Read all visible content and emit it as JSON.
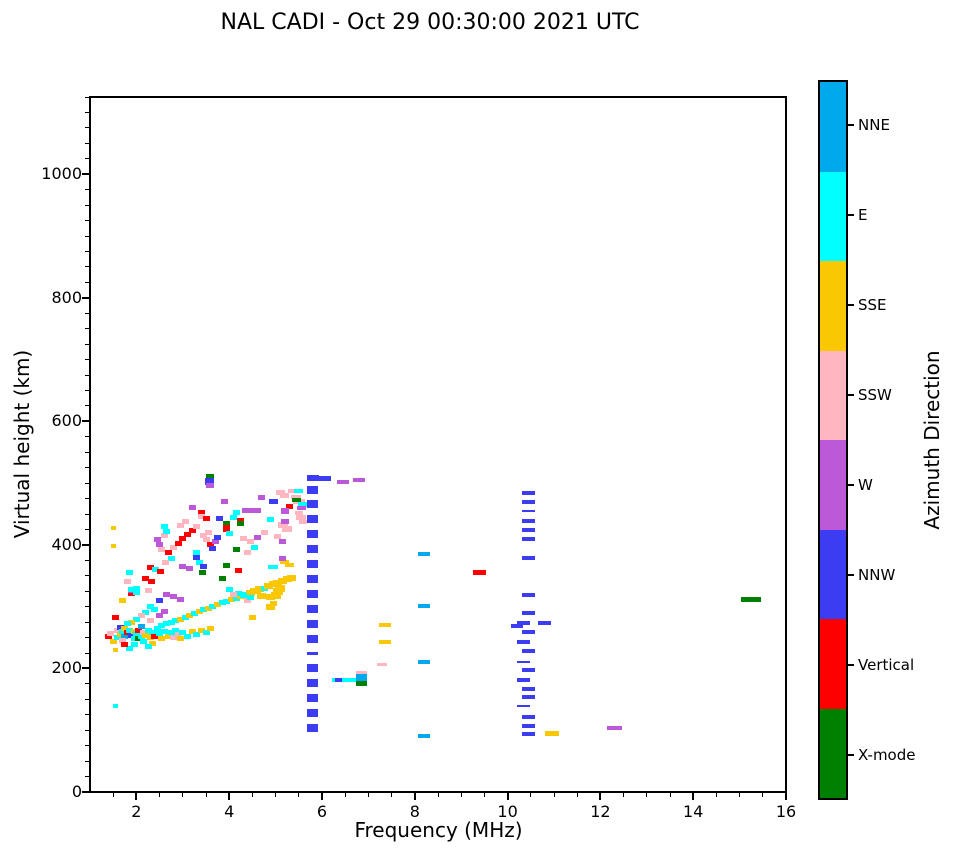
{
  "title": "NAL CADI - Oct 29 00:30:00 2021 UTC",
  "chart_data": {
    "type": "scatter",
    "title": "NAL CADI - Oct 29 00:30:00 2021 UTC",
    "xlabel": "Frequency (MHz)",
    "ylabel": "Virtual height (km)",
    "xlim": [
      1,
      16
    ],
    "ylim": [
      0,
      1125
    ],
    "xticks": [
      2,
      4,
      6,
      8,
      10,
      12,
      14,
      16
    ],
    "yticks": [
      0,
      200,
      400,
      600,
      800,
      1000
    ],
    "x_minor_step": 0.5,
    "y_minor_step": 25,
    "grid": true,
    "grid_color": "#c9c9c9",
    "palette": {
      "NNE": "#00A8EC",
      "E": "#00FFFF",
      "SSE": "#F9C802",
      "SSW": "#FFB6C1",
      "W": "#BC59D8",
      "NNW": "#3C3CF2",
      "V": "#FF0000",
      "X": "#008000"
    },
    "colorbar": {
      "label": "Azimuth Direction",
      "categories_top_to_bottom": [
        {
          "label": "NNE",
          "key": "NNE",
          "color": "#00A8EC"
        },
        {
          "label": "E",
          "key": "E",
          "color": "#00FFFF"
        },
        {
          "label": "SSE",
          "key": "SSE",
          "color": "#F9C802"
        },
        {
          "label": "SSW",
          "key": "SSW",
          "color": "#FFB6C1"
        },
        {
          "label": "W",
          "key": "W",
          "color": "#BC59D8"
        },
        {
          "label": "NNW",
          "key": "NNW",
          "color": "#3C3CF2"
        },
        {
          "label": "Vertical",
          "key": "V",
          "color": "#FF0000"
        },
        {
          "label": "X-mode",
          "key": "X",
          "color": "#008000"
        }
      ]
    },
    "point_format": "[freq_MHz, height_km, direction, width_px?, height_px?]",
    "points": [
      [
        1.5,
        428,
        "SSE",
        5,
        4
      ],
      [
        1.5,
        398,
        "SSE",
        5,
        4
      ],
      [
        1.55,
        139,
        "E",
        5,
        4
      ],
      [
        1.55,
        230,
        "SSE",
        5,
        4
      ],
      [
        3.58,
        510,
        "X",
        8,
        5
      ],
      [
        3.58,
        503,
        "NNW",
        9,
        7
      ],
      [
        3.58,
        496,
        "W",
        8,
        5
      ],
      [
        6.05,
        507,
        "NNW",
        13,
        5
      ],
      [
        6.45,
        502,
        "W",
        12,
        4
      ],
      [
        6.8,
        505,
        "W",
        12,
        4
      ],
      [
        5.45,
        477,
        "SSW",
        10,
        4
      ],
      [
        5.5,
        470,
        "SSW",
        12,
        5
      ],
      [
        5.35,
        487,
        "SSW",
        8,
        4
      ],
      [
        5.5,
        487,
        "E",
        9,
        4
      ],
      [
        5.6,
        466,
        "E",
        11,
        5
      ],
      [
        5.45,
        472,
        "X",
        9,
        4
      ],
      [
        5.55,
        460,
        "W",
        9,
        4
      ],
      [
        5.5,
        452,
        "SSW",
        8,
        4
      ],
      [
        5.55,
        444,
        "SSW",
        10,
        5
      ],
      [
        5.6,
        437,
        "SSW",
        8,
        4
      ],
      [
        5.3,
        462,
        "V",
        7,
        5
      ],
      [
        2.3,
        364,
        "V"
      ],
      [
        2.42,
        360,
        "E"
      ],
      [
        2.52,
        357,
        "V"
      ],
      [
        3.0,
        365,
        "W"
      ],
      [
        3.15,
        362,
        "W"
      ],
      [
        3.42,
        356,
        "X"
      ],
      [
        2.2,
        345,
        "V"
      ],
      [
        2.33,
        341,
        "V"
      ],
      [
        3.85,
        346,
        "X"
      ],
      [
        3.95,
        366,
        "X"
      ],
      [
        2.45,
        408,
        "W"
      ],
      [
        2.5,
        400,
        "W"
      ],
      [
        2.6,
        415,
        "SSW"
      ],
      [
        2.65,
        422,
        "E"
      ],
      [
        2.6,
        430,
        "E"
      ],
      [
        2.55,
        392,
        "SSW"
      ],
      [
        2.7,
        388,
        "V"
      ],
      [
        2.8,
        395,
        "SSW"
      ],
      [
        2.9,
        402,
        "V"
      ],
      [
        3.0,
        410,
        "V"
      ],
      [
        3.1,
        417,
        "V"
      ],
      [
        3.2,
        424,
        "V"
      ],
      [
        3.3,
        430,
        "SSW"
      ],
      [
        2.95,
        432,
        "SSW"
      ],
      [
        3.05,
        438,
        "SSW"
      ],
      [
        2.75,
        378,
        "E"
      ],
      [
        2.62,
        372,
        "SSW"
      ],
      [
        3.4,
        453,
        "V"
      ],
      [
        3.4,
        446,
        "SSW"
      ],
      [
        3.2,
        461,
        "W"
      ],
      [
        3.5,
        443,
        "V"
      ],
      [
        3.8,
        443,
        "NNW"
      ],
      [
        3.9,
        470,
        "W"
      ],
      [
        3.95,
        434,
        "X"
      ],
      [
        3.95,
        427,
        "V",
        7,
        7
      ],
      [
        4.1,
        445,
        "E"
      ],
      [
        4.15,
        452,
        "E"
      ],
      [
        4.25,
        440,
        "V"
      ],
      [
        4.25,
        434,
        "X"
      ],
      [
        4.5,
        456,
        "W"
      ],
      [
        4.35,
        455,
        "W"
      ],
      [
        4.6,
        455,
        "W"
      ],
      [
        4.7,
        477,
        "W"
      ],
      [
        4.9,
        441,
        "E"
      ],
      [
        4.95,
        470,
        "NNW",
        9,
        5
      ],
      [
        5.1,
        484,
        "SSW",
        9,
        5
      ],
      [
        5.2,
        480,
        "SSW",
        9,
        5
      ],
      [
        5.15,
        432,
        "SSW",
        10,
        6
      ],
      [
        5.25,
        425,
        "SSW",
        10,
        6
      ],
      [
        5.2,
        455,
        "W",
        8,
        6
      ],
      [
        5.2,
        438,
        "W",
        8,
        5
      ],
      [
        5.05,
        413,
        "SSW"
      ],
      [
        5.15,
        405,
        "W"
      ],
      [
        3.6,
        400,
        "V"
      ],
      [
        3.65,
        394,
        "NNW"
      ],
      [
        3.7,
        405,
        "W"
      ],
      [
        3.75,
        412,
        "NNW"
      ],
      [
        3.55,
        420,
        "SSW"
      ],
      [
        3.45,
        415,
        "SSW"
      ],
      [
        3.5,
        408,
        "SSW"
      ],
      [
        4.0,
        418,
        "E"
      ],
      [
        4.15,
        393,
        "X"
      ],
      [
        4.4,
        388,
        "SSW"
      ],
      [
        4.55,
        395,
        "E"
      ],
      [
        4.3,
        410,
        "SSW"
      ],
      [
        4.45,
        405,
        "SSW"
      ],
      [
        4.6,
        412,
        "W"
      ],
      [
        4.75,
        420,
        "SSW"
      ],
      [
        3.3,
        380,
        "NNW"
      ],
      [
        3.35,
        372,
        "E"
      ],
      [
        3.45,
        365,
        "NNW"
      ],
      [
        3.3,
        388,
        "E"
      ],
      [
        2.0,
        330,
        "E"
      ],
      [
        1.9,
        322,
        "V"
      ],
      [
        1.9,
        326,
        "W"
      ],
      [
        1.85,
        356,
        "E"
      ],
      [
        1.8,
        340,
        "SSW"
      ],
      [
        1.7,
        310,
        "SSE"
      ],
      [
        2.65,
        320,
        "W"
      ],
      [
        2.8,
        316,
        "W"
      ],
      [
        2.95,
        312,
        "W"
      ],
      [
        2.25,
        326,
        "SSW"
      ],
      [
        1.9,
        328,
        "E"
      ],
      [
        2.0,
        323,
        "E"
      ],
      [
        2.5,
        310,
        "NNW"
      ],
      [
        4.2,
        358,
        "V"
      ],
      [
        4.95,
        364,
        "E",
        10,
        4
      ],
      [
        5.2,
        373,
        "SSE",
        9,
        4
      ],
      [
        5.3,
        368,
        "SSE",
        9,
        4
      ],
      [
        5.15,
        378,
        "W"
      ],
      [
        2.55,
        270,
        "E"
      ],
      [
        2.65,
        272,
        "E"
      ],
      [
        2.75,
        275,
        "E"
      ],
      [
        2.85,
        278,
        "E"
      ],
      [
        2.95,
        280,
        "SSE"
      ],
      [
        3.05,
        283,
        "E"
      ],
      [
        3.15,
        286,
        "SSE"
      ],
      [
        3.25,
        289,
        "E"
      ],
      [
        3.35,
        292,
        "SSE"
      ],
      [
        3.45,
        295,
        "E"
      ],
      [
        3.55,
        297,
        "SSE"
      ],
      [
        3.65,
        300,
        "E"
      ],
      [
        3.75,
        303,
        "SSE"
      ],
      [
        3.85,
        306,
        "E"
      ],
      [
        3.95,
        308,
        "E"
      ],
      [
        4.05,
        311,
        "SSE"
      ],
      [
        4.15,
        314,
        "E"
      ],
      [
        4.25,
        317,
        "SSE"
      ],
      [
        4.35,
        320,
        "E"
      ],
      [
        4.45,
        322,
        "SSE",
        9,
        6
      ],
      [
        4.55,
        325,
        "SSE",
        9,
        6
      ],
      [
        4.65,
        328,
        "SSE",
        9,
        6
      ],
      [
        4.75,
        330,
        "E"
      ],
      [
        4.85,
        333,
        "SSE",
        9,
        6
      ],
      [
        4.95,
        336,
        "SSE",
        9,
        6
      ],
      [
        5.05,
        339,
        "SSE",
        9,
        6
      ],
      [
        5.15,
        342,
        "SSE",
        9,
        6
      ],
      [
        5.25,
        345,
        "SSE",
        9,
        6
      ],
      [
        5.35,
        347,
        "SSE",
        9,
        6
      ],
      [
        4.5,
        282,
        "SSE"
      ],
      [
        4.9,
        300,
        "SSE",
        9,
        6
      ],
      [
        4.95,
        305,
        "SSE"
      ],
      [
        5.0,
        318,
        "SSE",
        10,
        7
      ],
      [
        5.05,
        325,
        "SSE",
        10,
        7
      ],
      [
        4.6,
        325,
        "SSE"
      ],
      [
        4.7,
        318,
        "SSE",
        9,
        6
      ],
      [
        4.9,
        315,
        "SSE",
        9,
        6
      ],
      [
        5.1,
        330,
        "SSE",
        10,
        7
      ],
      [
        4.4,
        310,
        "SSW"
      ],
      [
        4.3,
        318,
        "E"
      ],
      [
        4.2,
        322,
        "E"
      ],
      [
        4.0,
        327,
        "E"
      ],
      [
        4.1,
        319,
        "SSW"
      ],
      [
        4.45,
        315,
        "E"
      ],
      [
        1.4,
        252,
        "V"
      ],
      [
        1.45,
        256,
        "SSW"
      ],
      [
        1.5,
        243,
        "SSE"
      ],
      [
        1.55,
        282,
        "V"
      ],
      [
        1.6,
        262,
        "SSW"
      ],
      [
        1.6,
        250,
        "E"
      ],
      [
        1.65,
        267,
        "NNW"
      ],
      [
        1.65,
        255,
        "SSE"
      ],
      [
        1.7,
        260,
        "E"
      ],
      [
        1.75,
        252,
        "NNE"
      ],
      [
        1.75,
        265,
        "SSE"
      ],
      [
        1.8,
        258,
        "V"
      ],
      [
        1.85,
        262,
        "E"
      ],
      [
        1.9,
        254,
        "NNW"
      ],
      [
        1.95,
        260,
        "SSE"
      ],
      [
        1.95,
        248,
        "E"
      ],
      [
        2.0,
        256,
        "E"
      ],
      [
        2.05,
        262,
        "V"
      ],
      [
        2.05,
        248,
        "X"
      ],
      [
        2.1,
        252,
        "E"
      ],
      [
        2.1,
        268,
        "NNE"
      ],
      [
        2.15,
        258,
        "SSW"
      ],
      [
        2.2,
        254,
        "SSE"
      ],
      [
        2.25,
        262,
        "E"
      ],
      [
        2.3,
        250,
        "SSE"
      ],
      [
        2.35,
        258,
        "E"
      ],
      [
        2.4,
        252,
        "V"
      ],
      [
        2.45,
        264,
        "E"
      ],
      [
        2.5,
        256,
        "E"
      ],
      [
        2.55,
        248,
        "SSE"
      ],
      [
        2.6,
        260,
        "E"
      ],
      [
        2.7,
        252,
        "SSE"
      ],
      [
        2.75,
        258,
        "E"
      ],
      [
        2.8,
        250,
        "SSW"
      ],
      [
        2.85,
        262,
        "E"
      ],
      [
        2.9,
        255,
        "SSW"
      ],
      [
        2.95,
        248,
        "SSE"
      ],
      [
        3.0,
        258,
        "E"
      ],
      [
        3.1,
        252,
        "E"
      ],
      [
        3.2,
        260,
        "SSE"
      ],
      [
        3.3,
        255,
        "E"
      ],
      [
        3.4,
        262,
        "SSE"
      ],
      [
        3.5,
        258,
        "E"
      ],
      [
        3.6,
        265,
        "SSE"
      ],
      [
        2.3,
        300,
        "E"
      ],
      [
        2.4,
        295,
        "E"
      ],
      [
        2.2,
        290,
        "E"
      ],
      [
        2.1,
        285,
        "SSW"
      ],
      [
        2.0,
        280,
        "E"
      ],
      [
        1.9,
        275,
        "SSE"
      ],
      [
        1.8,
        272,
        "E"
      ],
      [
        2.3,
        278,
        "SSW"
      ],
      [
        2.5,
        285,
        "W"
      ],
      [
        2.6,
        292,
        "W"
      ],
      [
        2.15,
        243,
        "E"
      ],
      [
        2.35,
        240,
        "SSE"
      ],
      [
        1.95,
        238,
        "E"
      ],
      [
        1.7,
        245,
        "SSW"
      ],
      [
        1.85,
        232,
        "E"
      ],
      [
        1.75,
        238,
        "V"
      ],
      [
        2.25,
        235,
        "E"
      ],
      [
        5.8,
        104,
        "NNW",
        11,
        8
      ],
      [
        5.8,
        128,
        "NNW",
        11,
        8
      ],
      [
        5.8,
        152,
        "NNW",
        11,
        8
      ],
      [
        5.8,
        176,
        "NNW",
        11,
        8
      ],
      [
        5.8,
        201,
        "NNW",
        11,
        8
      ],
      [
        5.8,
        225,
        "NNW",
        11,
        3
      ],
      [
        5.8,
        248,
        "NNW",
        11,
        8
      ],
      [
        5.8,
        272,
        "NNW",
        11,
        8
      ],
      [
        5.8,
        296,
        "NNW",
        11,
        8
      ],
      [
        5.8,
        320,
        "NNW",
        11,
        8
      ],
      [
        5.8,
        345,
        "NNW",
        11,
        8
      ],
      [
        5.8,
        369,
        "NNW",
        11,
        8
      ],
      [
        5.8,
        393,
        "NNW",
        11,
        8
      ],
      [
        5.8,
        418,
        "NNW",
        11,
        8
      ],
      [
        5.8,
        442,
        "NNW",
        11,
        8
      ],
      [
        5.8,
        466,
        "NNW",
        11,
        8
      ],
      [
        5.8,
        489,
        "NNW",
        11,
        8
      ],
      [
        5.8,
        508,
        "NNW",
        12,
        6
      ],
      [
        6.5,
        181,
        "E",
        26,
        4
      ],
      [
        6.35,
        181,
        "NNW",
        7,
        4
      ],
      [
        6.85,
        193,
        "SSW",
        11,
        4
      ],
      [
        6.85,
        184,
        "NNE",
        11,
        8
      ],
      [
        6.85,
        176,
        "X",
        11,
        5
      ],
      [
        7.35,
        270,
        "SSE",
        12,
        4
      ],
      [
        7.35,
        242,
        "SSE",
        12,
        4
      ],
      [
        7.3,
        207,
        "SSW",
        10,
        3
      ],
      [
        8.2,
        385,
        "NNE",
        12,
        4
      ],
      [
        8.2,
        301,
        "NNE",
        12,
        4
      ],
      [
        8.2,
        210,
        "NNE",
        12,
        4
      ],
      [
        8.2,
        90,
        "NNE",
        12,
        4
      ],
      [
        9.4,
        355,
        "V",
        13,
        5
      ],
      [
        10.45,
        484,
        "NNW",
        13,
        4
      ],
      [
        10.45,
        470,
        "NNW",
        13,
        4
      ],
      [
        10.45,
        455,
        "NNW",
        13,
        2
      ],
      [
        10.45,
        439,
        "NNW",
        13,
        4
      ],
      [
        10.45,
        424,
        "NNW",
        13,
        4
      ],
      [
        10.45,
        410,
        "NNW",
        13,
        4
      ],
      [
        10.45,
        379,
        "NNW",
        13,
        4
      ],
      [
        10.45,
        319,
        "NNW",
        13,
        4
      ],
      [
        10.45,
        289,
        "NNW",
        13,
        4
      ],
      [
        10.35,
        273,
        "NNW",
        13,
        4
      ],
      [
        10.45,
        259,
        "NNW",
        13,
        4
      ],
      [
        10.35,
        242,
        "NNW",
        13,
        4
      ],
      [
        10.45,
        228,
        "NNW",
        13,
        4
      ],
      [
        10.35,
        211,
        "NNW",
        13,
        2
      ],
      [
        10.45,
        198,
        "NNW",
        13,
        4
      ],
      [
        10.35,
        182,
        "NNW",
        13,
        4
      ],
      [
        10.45,
        166,
        "NNW",
        13,
        4
      ],
      [
        10.45,
        153,
        "NNW",
        13,
        4
      ],
      [
        10.35,
        140,
        "NNW",
        13,
        2
      ],
      [
        10.45,
        122,
        "NNW",
        13,
        4
      ],
      [
        10.45,
        107,
        "NNW",
        13,
        4
      ],
      [
        10.45,
        94,
        "NNW",
        13,
        4
      ],
      [
        10.2,
        269,
        "NNW",
        12,
        4
      ],
      [
        10.8,
        273,
        "NNW",
        13,
        4
      ],
      [
        10.95,
        94,
        "SSE",
        14,
        5
      ],
      [
        12.3,
        104,
        "W",
        15,
        4
      ],
      [
        15.25,
        312,
        "X",
        20,
        5
      ]
    ]
  }
}
